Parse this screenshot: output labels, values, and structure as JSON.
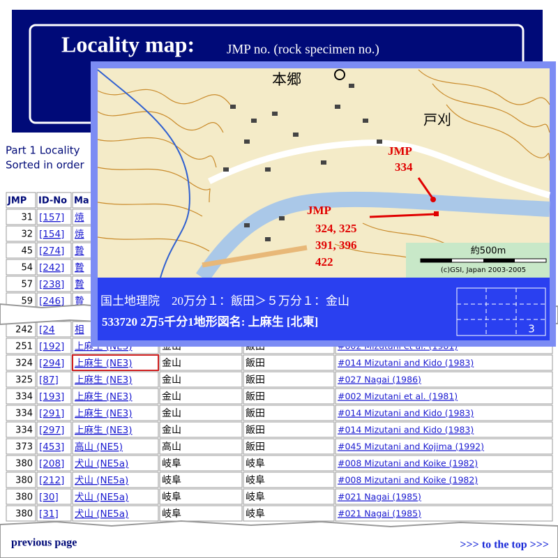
{
  "header": {
    "title": "Locality map:",
    "subtitle": "JMP no. (rock specimen no.)"
  },
  "intro": [
    "Part 1 Locality",
    "Sorted in order"
  ],
  "table": {
    "header": [
      "JMP",
      "ID-No",
      "Ma"
    ],
    "rows_top": [
      [
        "31",
        "[157]",
        "焼"
      ],
      [
        "32",
        "[154]",
        "焼"
      ],
      [
        "45",
        "[274]",
        "贄"
      ],
      [
        "54",
        "[242]",
        "贄"
      ],
      [
        "57",
        "[238]",
        "贄"
      ],
      [
        "59",
        "[246]",
        "贄"
      ]
    ],
    "rows_bottom": [
      [
        "242",
        "[24",
        "相"
      ],
      [
        "251",
        "[192]",
        "上麻生 (NE3)",
        "金山",
        "飯田",
        "#002 Mizutani et al. (1981)"
      ],
      [
        "324",
        "[294]",
        "上麻生 (NE3)",
        "金山",
        "飯田",
        "#014 Mizutani and Kido (1983)"
      ],
      [
        "325",
        "[87]",
        "上麻生 (NE3)",
        "金山",
        "飯田",
        "#027 Nagai (1986)"
      ],
      [
        "334",
        "[193]",
        "上麻生 (NE3)",
        "金山",
        "飯田",
        "#002 Mizutani et al. (1981)"
      ],
      [
        "334",
        "[291]",
        "上麻生 (NE3)",
        "金山",
        "飯田",
        "#014 Mizutani and Kido (1983)"
      ],
      [
        "334",
        "[297]",
        "上麻生 (NE3)",
        "金山",
        "飯田",
        "#014 Mizutani and Kido (1983)"
      ],
      [
        "373",
        "[453]",
        "高山 (NE5)",
        "高山",
        "飯田",
        "#045 Mizutani and Kojima (1992)"
      ],
      [
        "380",
        "[208]",
        "犬山 (NE5a)",
        "岐阜",
        "岐阜",
        "#008 Mizutani and Koike (1982)"
      ],
      [
        "380",
        "[212]",
        "犬山 (NE5a)",
        "岐阜",
        "岐阜",
        "#008 Mizutani and Koike (1982)"
      ],
      [
        "380",
        "[30]",
        "犬山 (NE5a)",
        "岐阜",
        "岐阜",
        "#021 Nagai (1985)"
      ],
      [
        "380",
        "[31]",
        "犬山 (NE5a)",
        "岐阜",
        "岐阜",
        "#021 Nagai (1985)"
      ]
    ]
  },
  "map": {
    "place1": "本郷",
    "place2": "戸刈",
    "jmp_a": [
      "JMP",
      "334"
    ],
    "jmp_b": [
      "JMP",
      "324, 325",
      "391, 396",
      "422"
    ],
    "scale": "約500m",
    "copyright": "(c)GSI, Japan 2003-2005",
    "caption1": "国土地理院　20万分１：飯田＞５万分１：金山",
    "caption2": "533720 2万5千分1地形図名: 上麻生 [北東]",
    "cell": "3"
  },
  "footer": {
    "prev": "previous page",
    "top": ">>> to the top >>>"
  }
}
